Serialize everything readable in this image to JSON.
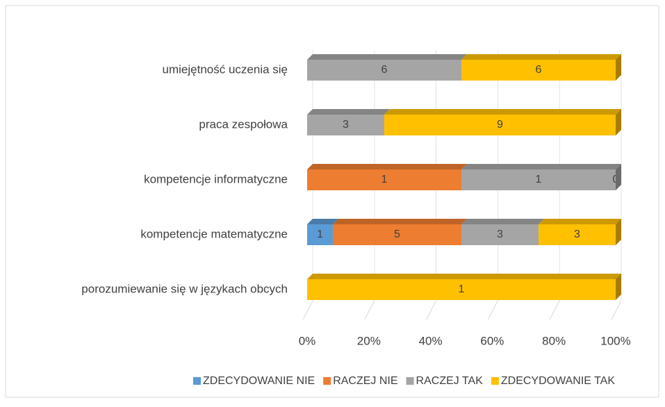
{
  "chart_data": {
    "type": "stacked-bar-100",
    "categories": [
      "umiejętność uczenia się",
      "praca zespołowa",
      "kompetencje informatyczne",
      "kompetencje matematyczne",
      "porozumiewanie się w językach obcych"
    ],
    "series": [
      {
        "name": "ZDECYDOWANIE NIE",
        "color": "#5b9bd5",
        "values": [
          0,
          0,
          0,
          1,
          0
        ]
      },
      {
        "name": "RACZEJ NIE",
        "color": "#ed7d31",
        "values": [
          null,
          null,
          1,
          5,
          null
        ]
      },
      {
        "name": "RACZEJ TAK",
        "color": "#a5a5a5",
        "values": [
          6,
          3,
          1,
          3,
          null
        ]
      },
      {
        "name": "ZDECYDOWANIE TAK",
        "color": "#ffc000",
        "values": [
          6,
          9,
          0,
          3,
          1
        ]
      }
    ],
    "xlim": [
      0,
      100
    ],
    "xticks": [
      {
        "value": 0,
        "label": "0%"
      },
      {
        "value": 20,
        "label": "20%"
      },
      {
        "value": 40,
        "label": "40%"
      },
      {
        "value": 60,
        "label": "60%"
      },
      {
        "value": 80,
        "label": "80%"
      },
      {
        "value": 100,
        "label": "100%"
      }
    ],
    "grid": true,
    "legend": "bottom"
  }
}
